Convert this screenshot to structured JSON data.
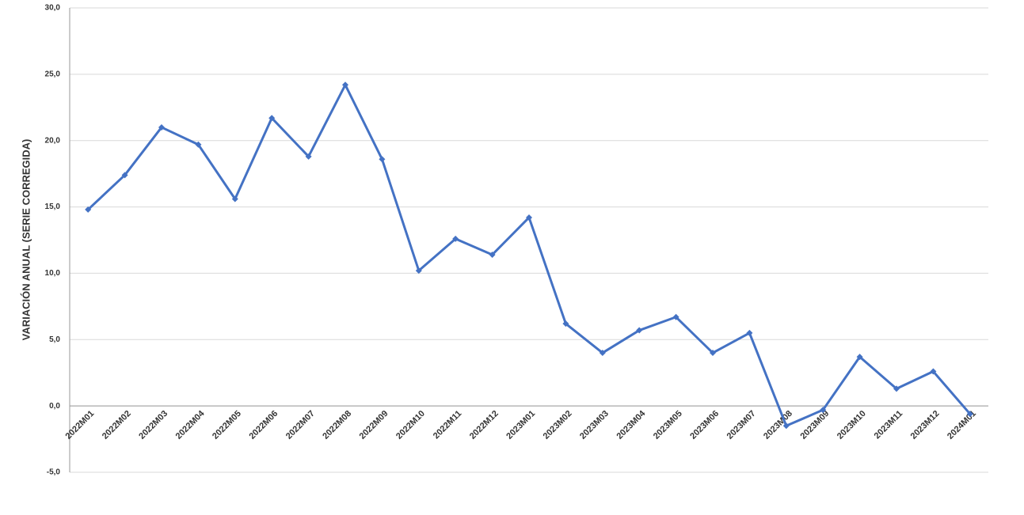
{
  "chart_data": {
    "type": "line",
    "y_label": "VARIACIÓN ANUAL (SERIE CORREGIDA)",
    "categories": [
      "2022M01",
      "2022M02",
      "2022M03",
      "2022M04",
      "2022M05",
      "2022M06",
      "2022M07",
      "2022M08",
      "2022M09",
      "2022M10",
      "2022M11",
      "2022M12",
      "2023M01",
      "2023M02",
      "2023M03",
      "2023M04",
      "2023M05",
      "2023M06",
      "2023M07",
      "2023M08",
      "2023M09",
      "2023M10",
      "2023M11",
      "2023M12",
      "2024M01"
    ],
    "values": [
      14.8,
      17.4,
      21.0,
      19.7,
      15.6,
      21.7,
      18.8,
      24.2,
      18.6,
      10.2,
      12.6,
      11.4,
      14.2,
      6.2,
      4.0,
      5.7,
      6.7,
      4.0,
      5.5,
      -1.5,
      -0.3,
      3.7,
      1.3,
      2.6,
      -0.6
    ],
    "color": "#4472c4",
    "ylim": [
      -5,
      30
    ],
    "yticks": [
      {
        "value": -5,
        "label": "-5,0"
      },
      {
        "value": 0,
        "label": "0,0"
      },
      {
        "value": 5,
        "label": "5,0"
      },
      {
        "value": 10,
        "label": "10,0"
      },
      {
        "value": 15,
        "label": "15,0"
      },
      {
        "value": 20,
        "label": "20,0"
      },
      {
        "value": 25,
        "label": "25,0"
      },
      {
        "value": 30,
        "label": "30,0"
      }
    ],
    "grid": true
  }
}
